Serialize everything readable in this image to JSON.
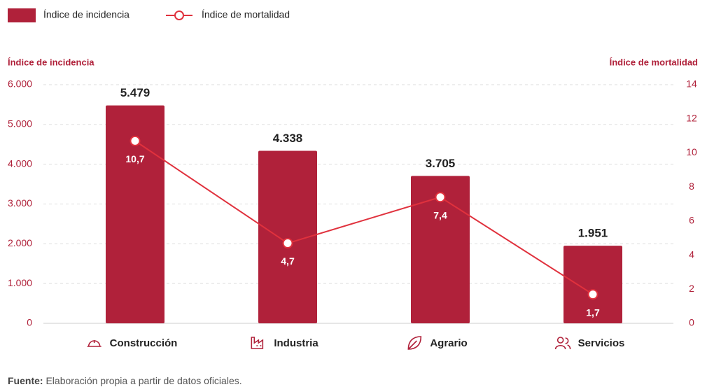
{
  "chart_data": {
    "type": "bar-line",
    "ylabel": "Índice de incidencia",
    "y2label": "Índice de mortalidad",
    "categories": [
      "Construcción",
      "Industria",
      "Agrario",
      "Servicios"
    ],
    "series": [
      {
        "name": "Índice de incidencia",
        "type": "bar",
        "color": "#b0213a",
        "values": [
          5479,
          4338,
          3705,
          1951
        ],
        "value_labels": [
          "5.479",
          "4.338",
          "3.705",
          "1.951"
        ]
      },
      {
        "name": "Índice de mortalidad",
        "type": "line",
        "axis": "y2",
        "color": "#e0313d",
        "values": [
          10.7,
          4.7,
          7.4,
          1.7
        ],
        "value_labels": [
          "10,7",
          "4,7",
          "7,4",
          "1,7"
        ]
      }
    ],
    "ylim": [
      0,
      6000
    ],
    "yticks": [
      0,
      {
        "value": 1000,
        "label": "1.000"
      },
      {
        "value": 2000,
        "label": "2.000"
      },
      {
        "value": 3000,
        "label": "3.000"
      },
      {
        "value": 4000,
        "label": "4.000"
      },
      {
        "value": 5000,
        "label": "5.000"
      },
      {
        "value": 6000,
        "label": "6.000"
      }
    ],
    "y2lim": [
      0,
      14
    ],
    "y2ticks": [
      0,
      2,
      4,
      6,
      8,
      10,
      12,
      14
    ],
    "grid": true,
    "source_label": "Fuente:",
    "source_text": "Elaboración propia a partir de datos oficiales."
  }
}
